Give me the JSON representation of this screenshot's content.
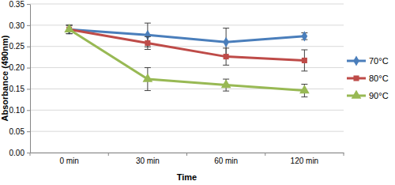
{
  "chart_data": {
    "type": "line",
    "x_label": "Time",
    "y_label": "Absorbance (490nm)",
    "categories": [
      "0 min",
      "30 min",
      "60 min",
      "120 min"
    ],
    "series": [
      {
        "name": "70°C",
        "color": "#4a7ebb",
        "marker": "diamond",
        "values": [
          0.29,
          0.277,
          0.26,
          0.274
        ],
        "errors": [
          0.01,
          0.028,
          0.033,
          0.008
        ]
      },
      {
        "name": "80°C",
        "color": "#be4b48",
        "marker": "square",
        "values": [
          0.29,
          0.258,
          0.226,
          0.217
        ],
        "errors": [
          0.01,
          0.015,
          0.02,
          0.025
        ]
      },
      {
        "name": "90°C",
        "color": "#98b954",
        "marker": "triangle",
        "values": [
          0.29,
          0.173,
          0.159,
          0.146
        ],
        "errors": [
          0.01,
          0.027,
          0.014,
          0.015
        ]
      }
    ],
    "ylim": [
      0,
      0.35
    ],
    "yticks": [
      {
        "value": 0,
        "label": "0.00"
      },
      0.05,
      {
        "value": 0.1,
        "label": "0.10"
      },
      0.15,
      {
        "value": 0.2,
        "label": "0.20"
      },
      0.25,
      {
        "value": 0.3,
        "label": "0.30"
      },
      0.35
    ],
    "grid": true,
    "legend": "right"
  }
}
